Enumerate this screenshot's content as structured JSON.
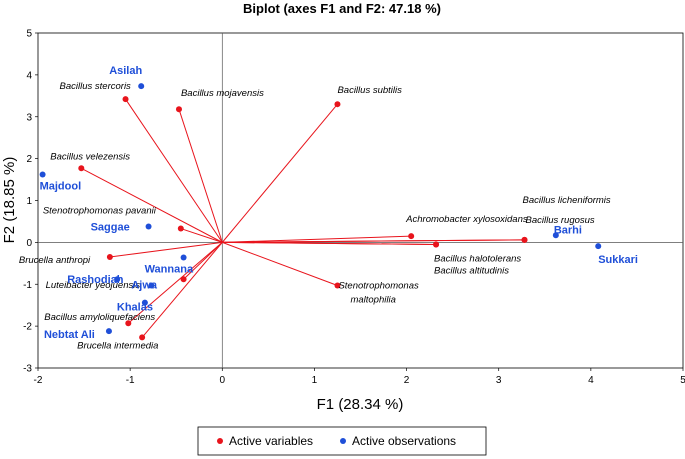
{
  "chart_data": {
    "type": "scatter",
    "title": "Biplot (axes F1 and F2: 47.18 %)",
    "xlabel": "F1 (28.34 %)",
    "ylabel": "F2 (18.85 %)",
    "xlim": [
      -2,
      5
    ],
    "ylim": [
      -3,
      5
    ],
    "xticks": [
      -2,
      -1,
      0,
      1,
      2,
      3,
      4,
      5
    ],
    "yticks": [
      -3,
      -2,
      -1,
      0,
      1,
      2,
      3,
      4,
      5
    ],
    "legend_position": "bottom",
    "colors": {
      "variables": "#e8141c",
      "observations": "#1f4fd8"
    },
    "series": [
      {
        "name": "Active variables",
        "kind": "vectors",
        "points": [
          {
            "label": "Bacillus stercoris",
            "x": -1.05,
            "y": 3.42
          },
          {
            "label": "Bacillus mojavensis",
            "x": -0.47,
            "y": 3.18
          },
          {
            "label": "Bacillus subtilis",
            "x": 1.25,
            "y": 3.3
          },
          {
            "label": "Bacillus velezensis",
            "x": -1.53,
            "y": 1.77
          },
          {
            "label": "Stenotrophomonas pavanii",
            "x": -0.45,
            "y": 0.33
          },
          {
            "label": "Brucella anthropi",
            "x": -1.22,
            "y": -0.35
          },
          {
            "label": "Luteibacter yeojuensis",
            "x": -0.42,
            "y": -0.88
          },
          {
            "label": "Bacillus amyloliquefaciens",
            "x": -1.02,
            "y": -1.93
          },
          {
            "label": "Brucella intermedia",
            "x": -0.87,
            "y": -2.27
          },
          {
            "label": "Stenotrophomonas maltophilia",
            "x": 1.25,
            "y": -1.03
          },
          {
            "label": "Achromobacter xylosoxidans",
            "x": 2.05,
            "y": 0.15
          },
          {
            "label": "Bacillus halotolerans",
            "x": 2.32,
            "y": -0.05
          },
          {
            "label": "Bacillus altitudinis",
            "x": 2.32,
            "y": -0.05
          },
          {
            "label": "Bacillus licheniformis",
            "x": 3.28,
            "y": 0.06
          },
          {
            "label": "Bacillus rugosus",
            "x": 3.28,
            "y": 0.06
          }
        ]
      },
      {
        "name": "Active observations",
        "kind": "points",
        "points": [
          {
            "label": "Asilah",
            "x": -0.88,
            "y": 3.73
          },
          {
            "label": "Majdool",
            "x": -1.95,
            "y": 1.62
          },
          {
            "label": "Saggae",
            "x": -0.8,
            "y": 0.38
          },
          {
            "label": "Wannana",
            "x": -0.42,
            "y": -0.36
          },
          {
            "label": "Rashodiah",
            "x": -1.14,
            "y": -0.88
          },
          {
            "label": "Ajwa",
            "x": -0.77,
            "y": -1.03
          },
          {
            "label": "Khalas",
            "x": -0.84,
            "y": -1.44
          },
          {
            "label": "Nebtat Ali",
            "x": -1.23,
            "y": -2.12
          },
          {
            "label": "Barhi",
            "x": 3.62,
            "y": 0.17
          },
          {
            "label": "Sukkari",
            "x": 4.08,
            "y": -0.09
          }
        ]
      }
    ]
  }
}
